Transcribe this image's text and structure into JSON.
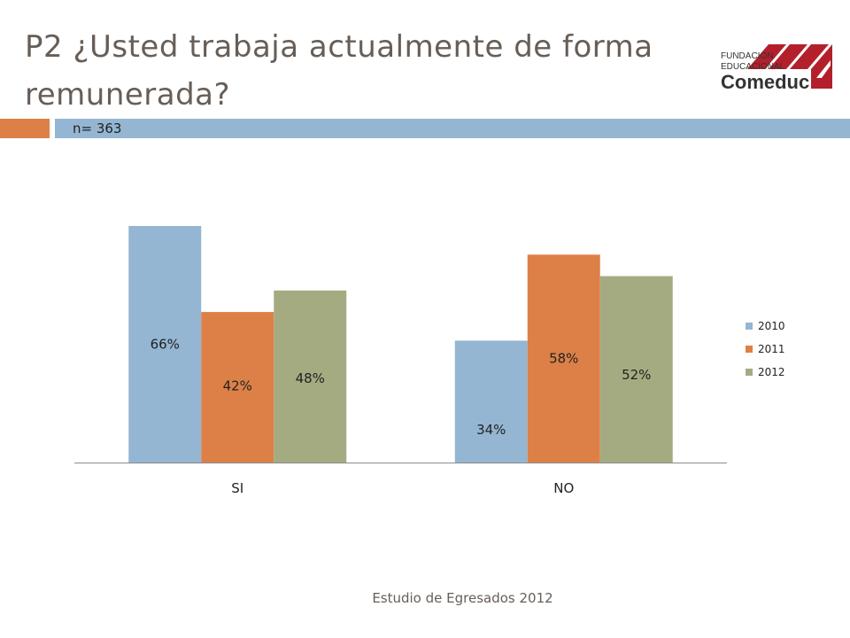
{
  "header": {
    "title": "P2 ¿Usted trabaja actualmente de forma remunerada?",
    "sample": "n= 363"
  },
  "logo": {
    "line1": "FUNDACIÓN",
    "line2": "EDUCACIONAL",
    "line3": "Comeduc"
  },
  "footer": {
    "text": "Estudio de Egresados 2012"
  },
  "colors": {
    "s2010": "#94b6d2",
    "s2011": "#dd8047",
    "s2012": "#a5ab81",
    "brand_red": "#b3202b",
    "title": "#675e57"
  },
  "chart_data": {
    "type": "bar",
    "categories": [
      "SI",
      "NO"
    ],
    "series": [
      {
        "name": "2010",
        "values": [
          66,
          34
        ],
        "labels": [
          "66%",
          "34%"
        ]
      },
      {
        "name": "2011",
        "values": [
          42,
          58
        ],
        "labels": [
          "42%",
          "58%"
        ]
      },
      {
        "name": "2012",
        "values": [
          48,
          52
        ],
        "labels": [
          "48%",
          "52%"
        ]
      }
    ],
    "ylim": [
      0,
      66
    ],
    "unit": "%",
    "grid": false,
    "legend": "right"
  }
}
